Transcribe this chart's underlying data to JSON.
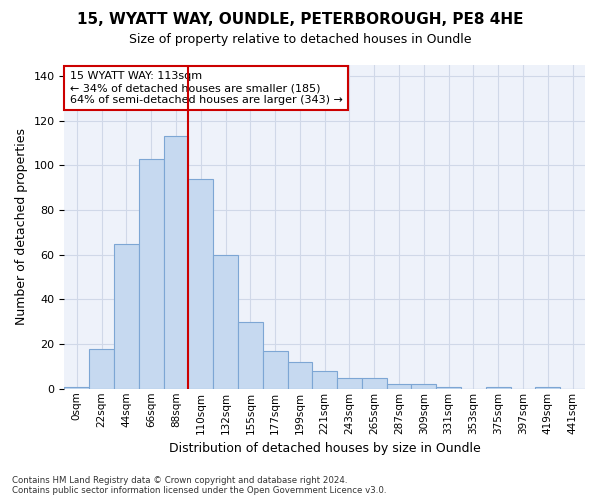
{
  "title_line1": "15, WYATT WAY, OUNDLE, PETERBOROUGH, PE8 4HE",
  "title_line2": "Size of property relative to detached houses in Oundle",
  "xlabel": "Distribution of detached houses by size in Oundle",
  "ylabel": "Number of detached properties",
  "bar_labels": [
    "0sqm",
    "22sqm",
    "44sqm",
    "66sqm",
    "88sqm",
    "110sqm",
    "132sqm",
    "155sqm",
    "177sqm",
    "199sqm",
    "221sqm",
    "243sqm",
    "265sqm",
    "287sqm",
    "309sqm",
    "331sqm",
    "353sqm",
    "375sqm",
    "397sqm",
    "419sqm",
    "441sqm"
  ],
  "bar_values": [
    1,
    18,
    65,
    103,
    113,
    94,
    60,
    30,
    17,
    12,
    8,
    5,
    5,
    2,
    2,
    1,
    0,
    1,
    0,
    1,
    0
  ],
  "bar_color": "#c6d9f0",
  "bar_edgecolor": "#7da6d4",
  "annotation_text": "15 WYATT WAY: 113sqm\n← 34% of detached houses are smaller (185)\n64% of semi-detached houses are larger (343) →",
  "annotation_box_color": "#ffffff",
  "annotation_box_edgecolor": "#cc0000",
  "vline_color": "#cc0000",
  "vline_bin_index": 5,
  "ylim": [
    0,
    145
  ],
  "yticks": [
    0,
    20,
    40,
    60,
    80,
    100,
    120,
    140
  ],
  "grid_color": "#d0d8e8",
  "background_color": "#eef2fa",
  "footer_line1": "Contains HM Land Registry data © Crown copyright and database right 2024.",
  "footer_line2": "Contains public sector information licensed under the Open Government Licence v3.0."
}
